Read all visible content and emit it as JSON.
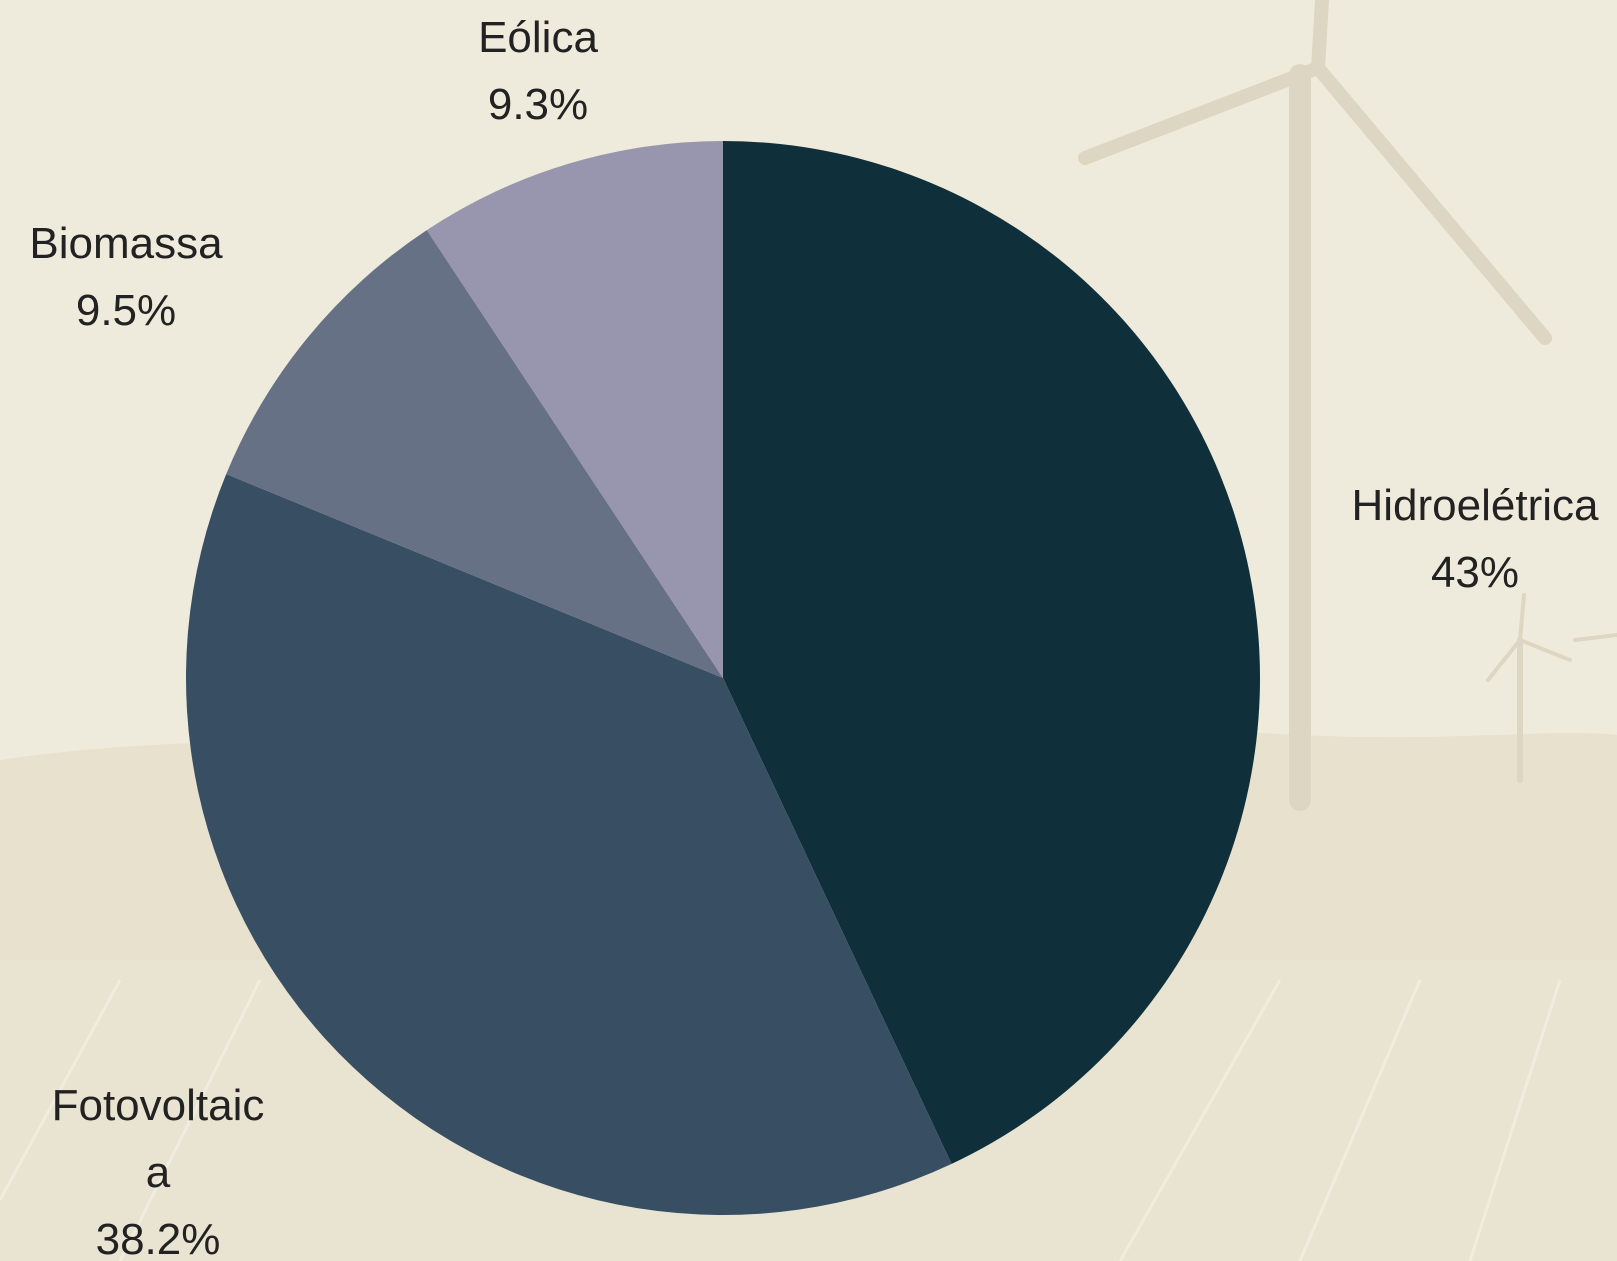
{
  "colors": {
    "background": "#efebdc",
    "label_text": "#222222"
  },
  "chart_data": {
    "type": "pie",
    "start": "top",
    "direction": "clockwise",
    "legend": "none",
    "slices": [
      {
        "category": "Hidroelétrica",
        "label_lines": [
          "Hidroelétrica"
        ],
        "value": 43,
        "value_label": "43%",
        "color": "#0f2f3a"
      },
      {
        "category": "Fotovoltaica",
        "label_lines": [
          "Fotovoltaic",
          "a"
        ],
        "value": 38.2,
        "value_label": "38.2%",
        "color": "#384f63"
      },
      {
        "category": "Biomassa",
        "label_lines": [
          "Biomassa"
        ],
        "value": 9.5,
        "value_label": "9.5%",
        "color": "#667186"
      },
      {
        "category": "Eólica",
        "label_lines": [
          "Eólica"
        ],
        "value": 9.3,
        "value_label": "9.3%",
        "color": "#9896ae"
      }
    ]
  }
}
